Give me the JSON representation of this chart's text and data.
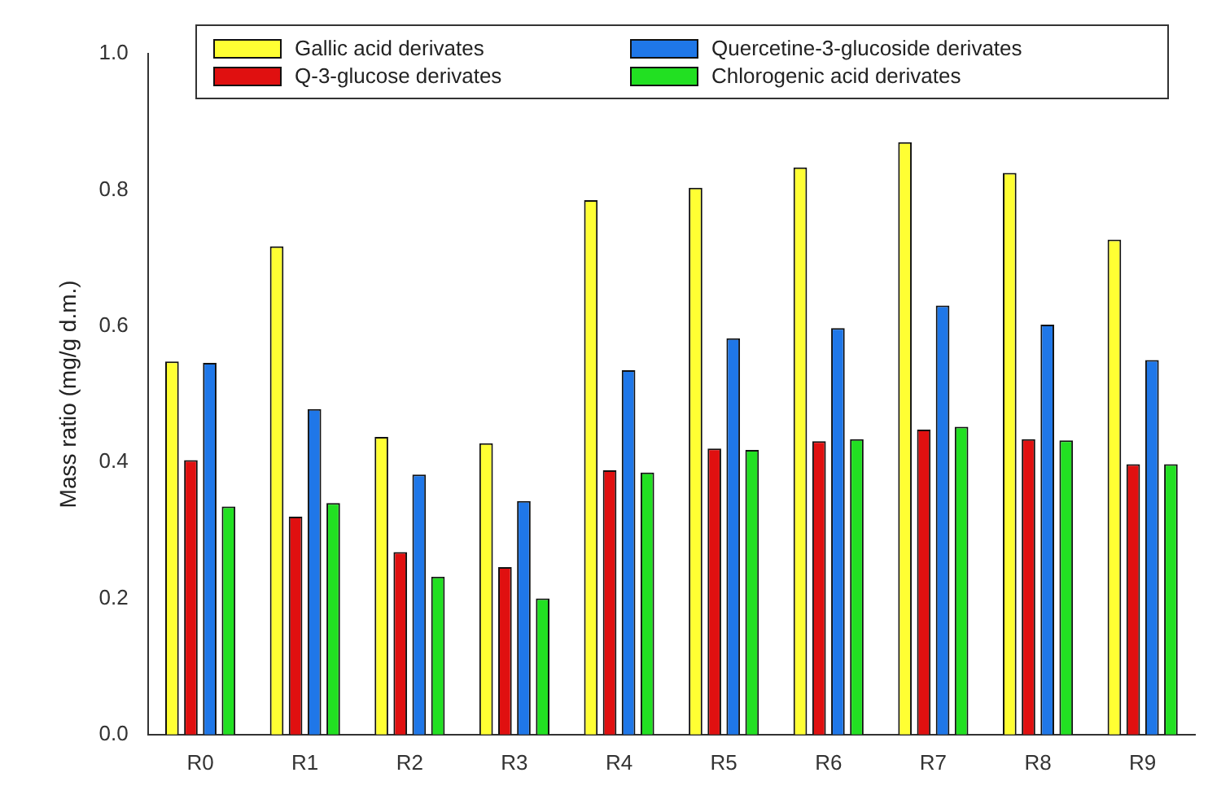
{
  "chart_data": {
    "type": "bar",
    "ylabel": "Mass ratio (mg/g d.m.)",
    "categories": [
      "R0",
      "R1",
      "R2",
      "R3",
      "R4",
      "R5",
      "R6",
      "R7",
      "R8",
      "R9"
    ],
    "series": [
      {
        "name": "Gallic acid derivates",
        "color": "#ffff33",
        "values": [
          0.548,
          0.717,
          0.437,
          0.428,
          0.785,
          0.803,
          0.833,
          0.87,
          0.825,
          0.727
        ]
      },
      {
        "name": "Q-3-glucose derivates",
        "color": "#e01010",
        "values": [
          0.403,
          0.32,
          0.268,
          0.246,
          0.388,
          0.42,
          0.431,
          0.448,
          0.434,
          0.397
        ]
      },
      {
        "name": "Quercetine-3-glucoside derivates",
        "color": "#1f77e8",
        "values": [
          0.546,
          0.478,
          0.382,
          0.343,
          0.535,
          0.582,
          0.597,
          0.63,
          0.602,
          0.55
        ]
      },
      {
        "name": "Chlorogenic acid derivates",
        "color": "#22e022",
        "values": [
          0.335,
          0.34,
          0.232,
          0.2,
          0.385,
          0.418,
          0.434,
          0.452,
          0.432,
          0.397
        ]
      }
    ],
    "ylim": [
      0,
      1
    ],
    "yticks": [
      {
        "value": 0,
        "label": "0.0"
      },
      {
        "value": 0.2,
        "label": "0.2"
      },
      {
        "value": 0.4,
        "label": "0.4"
      },
      {
        "value": 0.6,
        "label": "0.6"
      },
      {
        "value": 0.8,
        "label": "0.8"
      },
      {
        "value": 1,
        "label": "1.0"
      }
    ],
    "grid": false,
    "legend": "top"
  }
}
